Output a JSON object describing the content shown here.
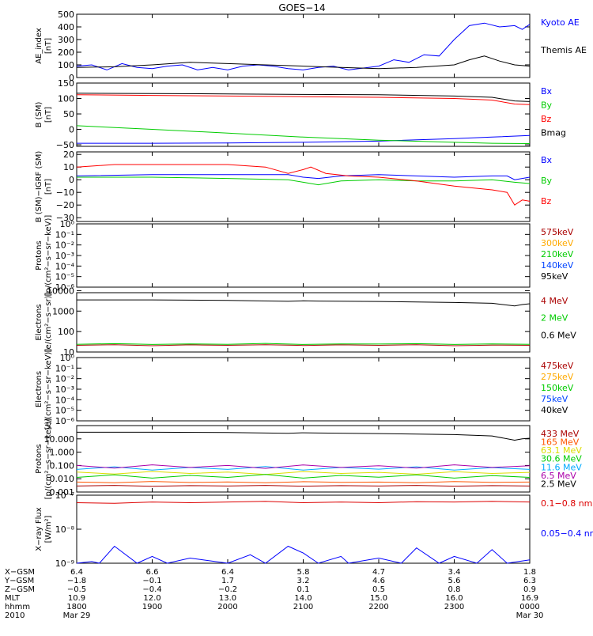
{
  "title": "GOES−14",
  "chart_data": [
    {
      "id": "ae",
      "type": "line",
      "ylabel": [
        "AE_index",
        "[nT]"
      ],
      "yscale": "linear",
      "ylim": [
        0,
        500
      ],
      "yticks": [
        "0",
        "100",
        "200",
        "300",
        "400",
        "500"
      ],
      "xlim": [
        0,
        6
      ],
      "series": [
        {
          "name": "Kyoto AE",
          "color": "#0000ff",
          "label_color": "#0000ff",
          "x": [
            0,
            0.2,
            0.4,
            0.6,
            0.8,
            1.0,
            1.2,
            1.4,
            1.6,
            1.8,
            2.0,
            2.2,
            2.4,
            2.6,
            2.8,
            3.0,
            3.2,
            3.4,
            3.6,
            3.8,
            4.0,
            4.2,
            4.4,
            4.6,
            4.8,
            5.0,
            5.2,
            5.4,
            5.6,
            5.8,
            5.9,
            6.0
          ],
          "y": [
            90,
            100,
            60,
            110,
            80,
            70,
            90,
            100,
            60,
            80,
            60,
            90,
            100,
            90,
            70,
            60,
            80,
            90,
            60,
            75,
            90,
            140,
            120,
            180,
            170,
            300,
            410,
            430,
            400,
            410,
            380,
            420
          ]
        },
        {
          "name": "Themis AE",
          "color": "#000000",
          "label_color": "#000000",
          "x": [
            0,
            0.5,
            1.0,
            1.5,
            2.0,
            2.5,
            3.0,
            3.5,
            4.0,
            4.5,
            5.0,
            5.2,
            5.4,
            5.6,
            5.8,
            6.0
          ],
          "y": [
            80,
            85,
            100,
            120,
            110,
            100,
            90,
            80,
            70,
            80,
            100,
            140,
            170,
            130,
            100,
            90
          ]
        }
      ]
    },
    {
      "id": "bsm",
      "type": "line",
      "ylabel": [
        "B (SM)",
        "[nT]"
      ],
      "yscale": "linear",
      "ylim": [
        -55,
        150
      ],
      "yticks": [
        "−50",
        "0",
        "50",
        "100",
        "150"
      ],
      "ytick_values": [
        -50,
        0,
        50,
        100,
        150
      ],
      "xlim": [
        0,
        6
      ],
      "series": [
        {
          "name": "Bx",
          "color": "#0000ff",
          "label_color": "#0000ff",
          "x": [
            0,
            1,
            2,
            3,
            4,
            5,
            5.5,
            6
          ],
          "y": [
            -45,
            -45,
            -44,
            -42,
            -38,
            -30,
            -25,
            -20
          ]
        },
        {
          "name": "By",
          "color": "#00cc00",
          "label_color": "#00cc00",
          "x": [
            0,
            1,
            2,
            3,
            4,
            5,
            5.5,
            6
          ],
          "y": [
            12,
            0,
            -12,
            -25,
            -35,
            -42,
            -45,
            -46
          ]
        },
        {
          "name": "Bz",
          "color": "#ff0000",
          "label_color": "#ff0000",
          "x": [
            0,
            1,
            2,
            3,
            4,
            5,
            5.5,
            5.8,
            6
          ],
          "y": [
            112,
            110,
            108,
            106,
            104,
            100,
            95,
            82,
            80
          ]
        },
        {
          "name": "Bmag",
          "color": "#000000",
          "label_color": "#000000",
          "x": [
            0,
            1,
            2,
            3,
            4,
            5,
            5.5,
            5.8,
            6
          ],
          "y": [
            117,
            116,
            115,
            113,
            112,
            108,
            104,
            92,
            90
          ]
        }
      ]
    },
    {
      "id": "bigrf",
      "type": "line",
      "ylabel": [
        "B (SM)−IGRF (SM)",
        "[nT]"
      ],
      "yscale": "linear",
      "ylim": [
        -33,
        22
      ],
      "yticks": [
        "−30",
        "−20",
        "−10",
        "0",
        "10",
        "20"
      ],
      "ytick_values": [
        -30,
        -20,
        -10,
        0,
        10,
        20
      ],
      "xlim": [
        0,
        6
      ],
      "series": [
        {
          "name": "Bx",
          "color": "#0000ff",
          "label_color": "#0000ff",
          "x": [
            0,
            1,
            2,
            2.8,
            3.0,
            3.2,
            3.5,
            4.0,
            4.5,
            5.0,
            5.5,
            5.7,
            5.8,
            6
          ],
          "y": [
            3,
            4,
            4,
            4,
            2,
            1,
            3,
            4,
            3,
            2,
            3,
            3,
            0,
            2
          ]
        },
        {
          "name": "By",
          "color": "#00cc00",
          "label_color": "#00cc00",
          "x": [
            0,
            1,
            2,
            2.8,
            3.0,
            3.2,
            3.5,
            4.0,
            4.5,
            5.0,
            5.5,
            5.8,
            6
          ],
          "y": [
            2,
            2,
            1,
            0,
            -2,
            -4,
            -1,
            0,
            -1,
            -1,
            0,
            -2,
            -3
          ]
        },
        {
          "name": "Bz",
          "color": "#ff0000",
          "label_color": "#ff0000",
          "x": [
            0,
            0.5,
            1.0,
            1.5,
            2.0,
            2.5,
            2.8,
            3.0,
            3.1,
            3.3,
            3.6,
            4.0,
            4.5,
            5.0,
            5.5,
            5.7,
            5.8,
            5.9,
            6
          ],
          "y": [
            10,
            12,
            12,
            12,
            12,
            10,
            5,
            8,
            10,
            5,
            3,
            2,
            -1,
            -5,
            -8,
            -10,
            -20,
            -16,
            -17
          ]
        }
      ]
    },
    {
      "id": "protons1",
      "type": "line",
      "ylabel": [
        "Protons",
        "[p/(cm²−s−sr−keV)]"
      ],
      "yscale": "log",
      "ylim": [
        -6,
        0
      ],
      "yticks": [
        "10⁻⁶",
        "10⁻⁵",
        "10⁻⁴",
        "10⁻³",
        "10⁻²",
        "10⁻¹",
        "10⁰"
      ],
      "ytick_values": [
        -6,
        -5,
        -4,
        -3,
        -2,
        -1,
        0
      ],
      "xlim": [
        0,
        6
      ],
      "series": [
        {
          "name": "575keV",
          "color": "#aa0000",
          "label_color": "#aa0000",
          "x": [],
          "y": []
        },
        {
          "name": "300keV",
          "color": "#ffaa00",
          "label_color": "#ffaa00",
          "x": [],
          "y": []
        },
        {
          "name": "210keV",
          "color": "#00cc00",
          "label_color": "#00cc00",
          "x": [],
          "y": []
        },
        {
          "name": "140keV",
          "color": "#0044ff",
          "label_color": "#0044ff",
          "x": [],
          "y": []
        },
        {
          "name": "95keV",
          "color": "#000000",
          "label_color": "#000000",
          "x": [],
          "y": []
        }
      ]
    },
    {
      "id": "electrons1",
      "type": "line",
      "ylabel": [
        "Electrons",
        "[e/(cm²−s−sr)]"
      ],
      "yscale": "log",
      "ylim": [
        1,
        3.9
      ],
      "yticks": [
        "10",
        "100",
        "1000",
        "10000"
      ],
      "ytick_values": [
        1,
        2,
        3,
        4
      ],
      "xlim": [
        0,
        6
      ],
      "series": [
        {
          "name": "4 MeV",
          "color": "#aa0000",
          "label_color": "#aa0000",
          "x": [
            0,
            0.5,
            1,
            1.5,
            2,
            2.5,
            3,
            3.5,
            4,
            4.5,
            5,
            5.5,
            6
          ],
          "y": [
            1.33,
            1.36,
            1.31,
            1.35,
            1.33,
            1.36,
            1.32,
            1.35,
            1.33,
            1.36,
            1.31,
            1.34,
            1.33
          ]
        },
        {
          "name": "2 MeV",
          "color": "#00cc00",
          "label_color": "#00cc00",
          "x": [
            0,
            0.5,
            1,
            1.5,
            2,
            2.5,
            3,
            3.5,
            4,
            4.5,
            5,
            5.5,
            6
          ],
          "y": [
            1.38,
            1.41,
            1.37,
            1.4,
            1.38,
            1.42,
            1.37,
            1.4,
            1.39,
            1.41,
            1.37,
            1.4,
            1.38
          ]
        },
        {
          "name": "0.6 MeV",
          "color": "#000000",
          "label_color": "#000000",
          "x": [
            0,
            1,
            2,
            2.8,
            3.0,
            3.2,
            4,
            5,
            5.5,
            5.8,
            5.9,
            6
          ],
          "y": [
            3.55,
            3.55,
            3.52,
            3.48,
            3.5,
            3.49,
            3.47,
            3.42,
            3.38,
            3.25,
            3.32,
            3.36
          ]
        }
      ]
    },
    {
      "id": "electrons2",
      "type": "line",
      "ylabel": [
        "Electrons",
        "[e/(cm²−s−sr−keV)]"
      ],
      "yscale": "log",
      "ylim": [
        -6,
        0
      ],
      "yticks": [
        "10⁻⁶",
        "10⁻⁵",
        "10⁻⁴",
        "10⁻³",
        "10⁻²",
        "10⁻¹",
        "10⁰"
      ],
      "ytick_values": [
        -6,
        -5,
        -4,
        -3,
        -2,
        -1,
        0
      ],
      "xlim": [
        0,
        6
      ],
      "series": [
        {
          "name": "475keV",
          "color": "#aa0000",
          "label_color": "#aa0000",
          "x": [],
          "y": []
        },
        {
          "name": "275keV",
          "color": "#ffaa00",
          "label_color": "#ffaa00",
          "x": [],
          "y": []
        },
        {
          "name": "150keV",
          "color": "#00cc00",
          "label_color": "#00cc00",
          "x": [],
          "y": []
        },
        {
          "name": "75keV",
          "color": "#0044ff",
          "label_color": "#0044ff",
          "x": [],
          "y": []
        },
        {
          "name": "40keV",
          "color": "#000000",
          "label_color": "#000000",
          "x": [],
          "y": []
        }
      ]
    },
    {
      "id": "protons2",
      "type": "line",
      "ylabel": [
        "Protons",
        "[p/(cm²−s−sr−keV)]"
      ],
      "yscale": "log",
      "ylim": [
        -3,
        2
      ],
      "yticks": [
        "0.001",
        "0.010",
        "0.100",
        "1.000",
        "10.000"
      ],
      "ytick_values": [
        -3,
        -2,
        -1,
        0,
        1
      ],
      "xlim": [
        0,
        6
      ],
      "series": [
        {
          "name": "433 MeV",
          "color": "#aa0000",
          "label_color": "#aa0000",
          "x": [
            0,
            0.5,
            1,
            1.5,
            2,
            2.5,
            3,
            3.5,
            4,
            4.5,
            5,
            5.5,
            6
          ],
          "y": [
            -2.55,
            -2.5,
            -2.57,
            -2.52,
            -2.55,
            -2.5,
            -2.56,
            -2.52,
            -2.55,
            -2.5,
            -2.56,
            -2.52,
            -2.55
          ]
        },
        {
          "name": "165 MeV",
          "color": "#ff5500",
          "label_color": "#ff5500",
          "x": [
            0,
            0.5,
            1,
            1.5,
            2,
            2.5,
            3,
            3.5,
            4,
            4.5,
            5,
            5.5,
            6
          ],
          "y": [
            -2.25,
            -2.3,
            -2.2,
            -2.28,
            -2.24,
            -2.3,
            -2.22,
            -2.27,
            -2.25,
            -2.3,
            -2.21,
            -2.27,
            -2.25
          ]
        },
        {
          "name": "63.1 MeV",
          "color": "#dddd00",
          "label_color": "#dddd00",
          "x": [
            0,
            0.5,
            1,
            1.5,
            2,
            2.5,
            3,
            3.5,
            4,
            4.5,
            5,
            5.5,
            6
          ],
          "y": [
            -1.5,
            -1.65,
            -1.45,
            -1.6,
            -1.5,
            -1.68,
            -1.46,
            -1.6,
            -1.52,
            -1.66,
            -1.47,
            -1.6,
            -1.52
          ]
        },
        {
          "name": "30.6 MeV",
          "color": "#00cc00",
          "label_color": "#00cc00",
          "x": [
            0,
            0.5,
            1,
            1.5,
            2,
            2.5,
            3,
            3.5,
            4,
            4.5,
            5,
            5.5,
            6
          ],
          "y": [
            -1.9,
            -1.7,
            -1.95,
            -1.75,
            -1.9,
            -1.68,
            -1.95,
            -1.75,
            -1.88,
            -1.7,
            -1.95,
            -1.76,
            -1.9
          ]
        },
        {
          "name": "11.6 MeV",
          "color": "#00aaff",
          "label_color": "#00aaff",
          "x": [
            0,
            0.5,
            1,
            1.5,
            2,
            2.5,
            3,
            3.5,
            4,
            4.5,
            5,
            5.5,
            6
          ],
          "y": [
            -1.3,
            -1.1,
            -1.35,
            -1.15,
            -1.3,
            -1.08,
            -1.35,
            -1.15,
            -1.28,
            -1.1,
            -1.35,
            -1.16,
            -1.3
          ]
        },
        {
          "name": "6.5 MeV",
          "color": "#aa00aa",
          "label_color": "#aa00aa",
          "x": [
            0,
            0.5,
            1,
            1.5,
            2,
            2.5,
            3,
            3.5,
            4,
            4.5,
            5,
            5.5,
            6
          ],
          "y": [
            -1.0,
            -1.2,
            -0.95,
            -1.15,
            -1.0,
            -1.22,
            -0.96,
            -1.15,
            -1.02,
            -1.2,
            -0.95,
            -1.15,
            -1.02
          ]
        },
        {
          "name": "2.5 MeV",
          "color": "#000000",
          "label_color": "#000000",
          "x": [
            0,
            1,
            2,
            2.8,
            3.0,
            3.2,
            4,
            5,
            5.5,
            5.8,
            5.9,
            6
          ],
          "y": [
            1.5,
            1.5,
            1.48,
            1.42,
            1.46,
            1.44,
            1.4,
            1.32,
            1.22,
            0.9,
            1.0,
            1.05
          ]
        }
      ]
    },
    {
      "id": "xray",
      "type": "line",
      "ylabel": [
        "X−ray Flux",
        "[W/m²]"
      ],
      "yscale": "log",
      "ylim": [
        -9,
        -7
      ],
      "yticks": [
        "10⁻⁹",
        "10⁻⁸",
        "10⁻⁷"
      ],
      "ytick_values": [
        -9,
        -8,
        -7
      ],
      "xlim": [
        0,
        6
      ],
      "series": [
        {
          "name": "0.1−0.8 nm",
          "color": "#dd0000",
          "label_color": "#dd0000",
          "x": [
            0,
            0.5,
            1,
            1.5,
            2,
            2.5,
            3,
            3.5,
            4,
            4.5,
            5,
            5.5,
            6
          ],
          "y": [
            -7.22,
            -7.24,
            -7.2,
            -7.22,
            -7.2,
            -7.18,
            -7.22,
            -7.2,
            -7.22,
            -7.19,
            -7.2,
            -7.18,
            -7.2
          ]
        },
        {
          "name": "0.05−0.4 nm",
          "color": "#0000ff",
          "label_color": "#0000ff",
          "x": [
            0,
            0.2,
            0.3,
            0.5,
            0.8,
            1.0,
            1.2,
            1.5,
            2.0,
            2.3,
            2.5,
            2.8,
            3.0,
            3.2,
            3.5,
            3.6,
            4.0,
            4.3,
            4.5,
            4.8,
            5.0,
            5.3,
            5.5,
            5.7,
            6.0
          ],
          "y": [
            -9,
            -8.95,
            -9,
            -8.5,
            -9,
            -8.8,
            -9,
            -8.85,
            -9,
            -8.75,
            -9,
            -8.5,
            -8.7,
            -9,
            -8.8,
            -9,
            -8.85,
            -9,
            -8.55,
            -9,
            -8.8,
            -9,
            -8.6,
            -9,
            -8.9
          ]
        }
      ]
    }
  ],
  "orbit_table": {
    "rows": [
      {
        "label": "X−GSM",
        "values": [
          "6.4",
          "6.6",
          "6.4",
          "5.8",
          "4.7",
          "3.4",
          "1.8"
        ]
      },
      {
        "label": "Y−GSM",
        "values": [
          "−1.8",
          "−0.1",
          "1.7",
          "3.2",
          "4.6",
          "5.6",
          "6.3"
        ]
      },
      {
        "label": "Z−GSM",
        "values": [
          "−0.5",
          "−0.4",
          "−0.2",
          "0.1",
          "0.5",
          "0.8",
          "0.9"
        ]
      },
      {
        "label": "MLT",
        "values": [
          "10.9",
          "12.0",
          "13.0",
          "14.0",
          "15.0",
          "16.0",
          "16.9"
        ]
      },
      {
        "label": "hhmm",
        "values": [
          "1800",
          "1900",
          "2000",
          "2100",
          "2200",
          "2300",
          "0000"
        ]
      },
      {
        "label": "2010",
        "values": [
          "Mar 29",
          "",
          "",
          "",
          "",
          "",
          "Mar 30"
        ]
      }
    ]
  }
}
